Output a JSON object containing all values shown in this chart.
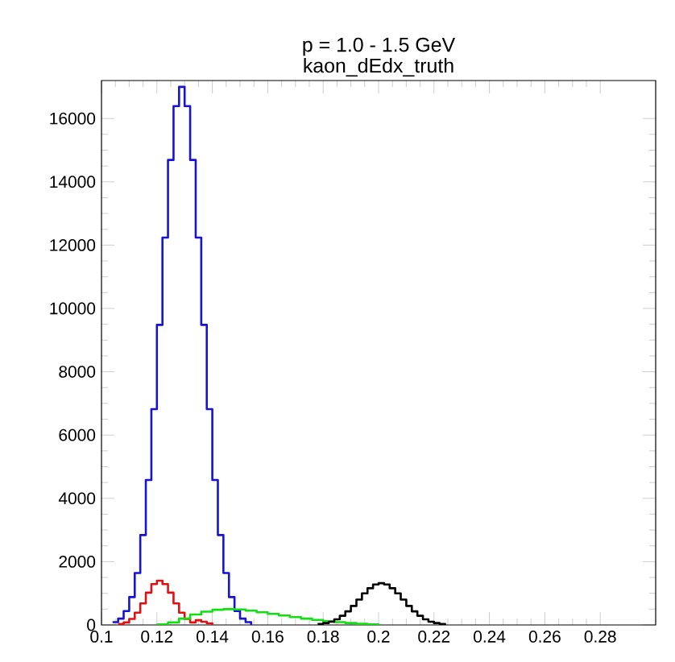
{
  "chart_data": {
    "type": "step",
    "title": "p = 1.0 - 1.5 GeV",
    "subtitle": "kaon_dEdx_truth",
    "xlim": [
      0.1,
      0.3
    ],
    "ylim": [
      0,
      17200
    ],
    "xticks": [
      0.1,
      0.12,
      0.14,
      0.16,
      0.18,
      0.2,
      0.22,
      0.24,
      0.26,
      0.28
    ],
    "yticks": [
      0,
      2000,
      4000,
      6000,
      8000,
      10000,
      12000,
      14000,
      16000
    ],
    "series": [
      {
        "color": "#1414d2",
        "x": [
          0.104,
          0.106,
          0.108,
          0.11,
          0.112,
          0.114,
          0.116,
          0.118,
          0.12,
          0.122,
          0.124,
          0.126,
          0.128,
          0.13,
          0.132,
          0.134,
          0.136,
          0.138,
          0.14,
          0.142,
          0.144,
          0.146,
          0.148,
          0.15,
          0.152,
          0.154
        ],
        "values": [
          90,
          200,
          440,
          880,
          1640,
          2840,
          4580,
          6820,
          9480,
          12240,
          14690,
          16390,
          17000,
          16390,
          14690,
          12240,
          9480,
          6820,
          4580,
          2840,
          1640,
          880,
          440,
          200,
          90,
          0
        ]
      },
      {
        "color": "#e01010",
        "x": [
          0.106,
          0.108,
          0.11,
          0.112,
          0.114,
          0.116,
          0.118,
          0.12,
          0.122,
          0.124,
          0.126,
          0.128,
          0.13,
          0.132,
          0.134,
          0.136,
          0.138,
          0.14
        ],
        "values": [
          30,
          80,
          190,
          390,
          680,
          1020,
          1290,
          1400,
          1290,
          1020,
          680,
          390,
          190,
          80,
          150,
          100,
          50,
          0
        ]
      },
      {
        "color": "#10e010",
        "x": [
          0.12,
          0.124,
          0.128,
          0.132,
          0.136,
          0.14,
          0.144,
          0.148,
          0.152,
          0.156,
          0.16,
          0.164,
          0.168,
          0.172,
          0.176,
          0.18,
          0.184,
          0.188,
          0.192,
          0.196,
          0.2
        ],
        "values": [
          20,
          80,
          200,
          330,
          420,
          480,
          500,
          490,
          450,
          400,
          350,
          300,
          250,
          200,
          160,
          120,
          90,
          60,
          40,
          20,
          0
        ]
      },
      {
        "color": "#000000",
        "x": [
          0.178,
          0.18,
          0.182,
          0.184,
          0.186,
          0.188,
          0.19,
          0.192,
          0.194,
          0.196,
          0.198,
          0.2,
          0.202,
          0.204,
          0.206,
          0.208,
          0.21,
          0.212,
          0.214,
          0.216,
          0.218,
          0.22,
          0.222,
          0.224
        ],
        "values": [
          30,
          60,
          100,
          180,
          290,
          430,
          600,
          800,
          1000,
          1160,
          1280,
          1320,
          1280,
          1160,
          1000,
          800,
          600,
          430,
          290,
          180,
          100,
          60,
          30,
          0
        ]
      }
    ]
  }
}
